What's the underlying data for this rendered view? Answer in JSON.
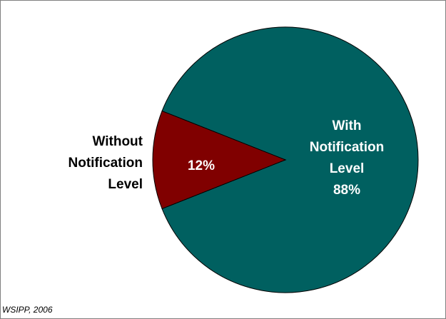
{
  "chart_data": {
    "type": "pie",
    "title": "",
    "slices": [
      {
        "label_lines": [
          "With",
          "Notification",
          "Level"
        ],
        "value_text": "88%",
        "value": 88,
        "color": "#006060"
      },
      {
        "label_lines": [
          "Without",
          "Notification",
          "Level"
        ],
        "value_text": "12%",
        "value": 12,
        "color": "#800000"
      }
    ],
    "legend": "none",
    "start_angle_deg": 0,
    "direction": "clockwise"
  },
  "source_note": "WSIPP, 2006",
  "colors": {
    "background": "#ffffff",
    "border": "#808080",
    "outline": "#000000",
    "inside_text": "#ffffff",
    "outside_text": "#000000"
  }
}
